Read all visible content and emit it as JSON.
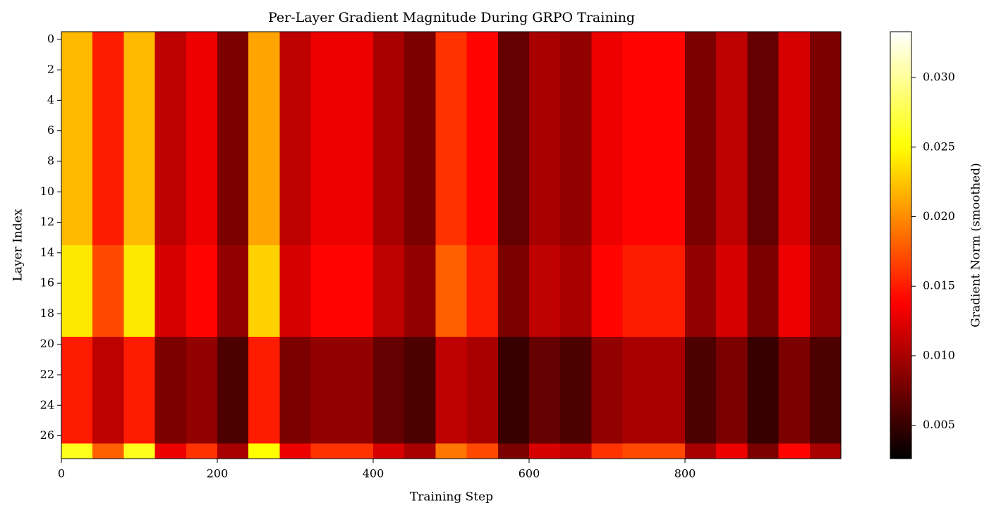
{
  "chart_data": {
    "type": "heatmap",
    "title": "Per-Layer Gradient Magnitude During GRPO Training",
    "x_label": "Training Step",
    "y_label": "Layer Index",
    "colorbar_label": "Gradient Norm (smoothed)",
    "colormap": "hot",
    "xbins": [
      0,
      40,
      80,
      120,
      160,
      200,
      240,
      280,
      320,
      360,
      400,
      440,
      480,
      520,
      560,
      600,
      640,
      680,
      720,
      760,
      800,
      840,
      880,
      920,
      960,
      1000
    ],
    "y": [
      0,
      1,
      2,
      3,
      4,
      5,
      6,
      7,
      8,
      9,
      10,
      11,
      12,
      13,
      14,
      15,
      16,
      17,
      18,
      19,
      20,
      21,
      22,
      23,
      24,
      25,
      26,
      27
    ],
    "z": [
      [
        0.022,
        0.015,
        0.022,
        0.011,
        0.013,
        0.008,
        0.021,
        0.011,
        0.013,
        0.013,
        0.01,
        0.008,
        0.016,
        0.014,
        0.007,
        0.01,
        0.009,
        0.013,
        0.014,
        0.014,
        0.008,
        0.011,
        0.007,
        0.012,
        0.008
      ],
      [
        0.022,
        0.015,
        0.022,
        0.011,
        0.013,
        0.008,
        0.021,
        0.011,
        0.013,
        0.013,
        0.01,
        0.008,
        0.016,
        0.014,
        0.007,
        0.01,
        0.009,
        0.013,
        0.014,
        0.014,
        0.008,
        0.011,
        0.007,
        0.012,
        0.008
      ],
      [
        0.022,
        0.015,
        0.022,
        0.011,
        0.013,
        0.008,
        0.021,
        0.011,
        0.013,
        0.013,
        0.01,
        0.008,
        0.016,
        0.014,
        0.007,
        0.01,
        0.009,
        0.013,
        0.014,
        0.014,
        0.008,
        0.011,
        0.007,
        0.012,
        0.008
      ],
      [
        0.022,
        0.015,
        0.022,
        0.011,
        0.013,
        0.008,
        0.021,
        0.011,
        0.013,
        0.013,
        0.01,
        0.008,
        0.016,
        0.014,
        0.007,
        0.01,
        0.009,
        0.013,
        0.014,
        0.014,
        0.008,
        0.011,
        0.007,
        0.012,
        0.008
      ],
      [
        0.022,
        0.015,
        0.022,
        0.011,
        0.013,
        0.008,
        0.021,
        0.011,
        0.013,
        0.013,
        0.01,
        0.008,
        0.016,
        0.014,
        0.007,
        0.01,
        0.009,
        0.013,
        0.014,
        0.014,
        0.008,
        0.011,
        0.007,
        0.012,
        0.008
      ],
      [
        0.022,
        0.015,
        0.022,
        0.011,
        0.013,
        0.008,
        0.021,
        0.011,
        0.013,
        0.013,
        0.01,
        0.008,
        0.016,
        0.014,
        0.007,
        0.01,
        0.009,
        0.013,
        0.014,
        0.014,
        0.008,
        0.011,
        0.007,
        0.012,
        0.008
      ],
      [
        0.022,
        0.015,
        0.022,
        0.011,
        0.013,
        0.008,
        0.021,
        0.011,
        0.013,
        0.013,
        0.01,
        0.008,
        0.016,
        0.014,
        0.007,
        0.01,
        0.009,
        0.013,
        0.014,
        0.014,
        0.008,
        0.011,
        0.007,
        0.012,
        0.008
      ],
      [
        0.022,
        0.015,
        0.022,
        0.011,
        0.013,
        0.008,
        0.021,
        0.011,
        0.013,
        0.013,
        0.01,
        0.008,
        0.016,
        0.014,
        0.007,
        0.01,
        0.009,
        0.013,
        0.014,
        0.014,
        0.008,
        0.011,
        0.007,
        0.012,
        0.008
      ],
      [
        0.022,
        0.015,
        0.022,
        0.011,
        0.013,
        0.008,
        0.021,
        0.011,
        0.013,
        0.013,
        0.01,
        0.008,
        0.016,
        0.014,
        0.007,
        0.01,
        0.009,
        0.013,
        0.014,
        0.014,
        0.008,
        0.011,
        0.007,
        0.012,
        0.008
      ],
      [
        0.022,
        0.015,
        0.022,
        0.011,
        0.013,
        0.008,
        0.021,
        0.011,
        0.013,
        0.013,
        0.01,
        0.008,
        0.016,
        0.014,
        0.007,
        0.01,
        0.009,
        0.013,
        0.014,
        0.014,
        0.008,
        0.011,
        0.007,
        0.012,
        0.008
      ],
      [
        0.022,
        0.015,
        0.022,
        0.011,
        0.013,
        0.008,
        0.021,
        0.011,
        0.013,
        0.013,
        0.01,
        0.008,
        0.016,
        0.014,
        0.007,
        0.01,
        0.009,
        0.013,
        0.014,
        0.014,
        0.008,
        0.011,
        0.007,
        0.012,
        0.008
      ],
      [
        0.022,
        0.015,
        0.022,
        0.011,
        0.013,
        0.008,
        0.021,
        0.011,
        0.013,
        0.013,
        0.01,
        0.008,
        0.016,
        0.014,
        0.007,
        0.01,
        0.009,
        0.013,
        0.014,
        0.014,
        0.008,
        0.011,
        0.007,
        0.012,
        0.008
      ],
      [
        0.022,
        0.015,
        0.022,
        0.011,
        0.013,
        0.008,
        0.021,
        0.011,
        0.013,
        0.013,
        0.01,
        0.008,
        0.016,
        0.014,
        0.007,
        0.01,
        0.009,
        0.013,
        0.014,
        0.014,
        0.008,
        0.011,
        0.007,
        0.012,
        0.008
      ],
      [
        0.022,
        0.015,
        0.022,
        0.011,
        0.013,
        0.008,
        0.021,
        0.011,
        0.013,
        0.013,
        0.01,
        0.008,
        0.016,
        0.014,
        0.007,
        0.01,
        0.009,
        0.013,
        0.014,
        0.014,
        0.008,
        0.011,
        0.007,
        0.012,
        0.008
      ],
      [
        0.024,
        0.017,
        0.024,
        0.012,
        0.014,
        0.009,
        0.023,
        0.012,
        0.014,
        0.014,
        0.011,
        0.009,
        0.018,
        0.015,
        0.008,
        0.011,
        0.01,
        0.014,
        0.015,
        0.015,
        0.009,
        0.012,
        0.008,
        0.013,
        0.009
      ],
      [
        0.024,
        0.017,
        0.024,
        0.012,
        0.014,
        0.009,
        0.023,
        0.012,
        0.014,
        0.014,
        0.011,
        0.009,
        0.018,
        0.015,
        0.008,
        0.011,
        0.01,
        0.014,
        0.015,
        0.015,
        0.009,
        0.012,
        0.008,
        0.013,
        0.009
      ],
      [
        0.024,
        0.017,
        0.024,
        0.012,
        0.014,
        0.009,
        0.023,
        0.012,
        0.014,
        0.014,
        0.011,
        0.009,
        0.018,
        0.015,
        0.008,
        0.011,
        0.01,
        0.014,
        0.015,
        0.015,
        0.009,
        0.012,
        0.008,
        0.013,
        0.009
      ],
      [
        0.024,
        0.017,
        0.024,
        0.012,
        0.014,
        0.009,
        0.023,
        0.012,
        0.014,
        0.014,
        0.011,
        0.009,
        0.018,
        0.015,
        0.008,
        0.011,
        0.01,
        0.014,
        0.015,
        0.015,
        0.009,
        0.012,
        0.008,
        0.013,
        0.009
      ],
      [
        0.024,
        0.017,
        0.024,
        0.012,
        0.014,
        0.009,
        0.023,
        0.012,
        0.014,
        0.014,
        0.011,
        0.009,
        0.018,
        0.015,
        0.008,
        0.011,
        0.01,
        0.014,
        0.015,
        0.015,
        0.009,
        0.012,
        0.008,
        0.013,
        0.009
      ],
      [
        0.024,
        0.017,
        0.024,
        0.012,
        0.014,
        0.009,
        0.023,
        0.012,
        0.014,
        0.014,
        0.011,
        0.009,
        0.018,
        0.015,
        0.008,
        0.011,
        0.01,
        0.014,
        0.015,
        0.015,
        0.009,
        0.012,
        0.008,
        0.013,
        0.009
      ],
      [
        0.015,
        0.011,
        0.015,
        0.008,
        0.009,
        0.006,
        0.015,
        0.008,
        0.009,
        0.009,
        0.007,
        0.006,
        0.011,
        0.01,
        0.005,
        0.007,
        0.006,
        0.009,
        0.01,
        0.01,
        0.006,
        0.008,
        0.005,
        0.008,
        0.006
      ],
      [
        0.015,
        0.011,
        0.015,
        0.008,
        0.009,
        0.006,
        0.015,
        0.008,
        0.009,
        0.009,
        0.007,
        0.006,
        0.011,
        0.01,
        0.005,
        0.007,
        0.006,
        0.009,
        0.01,
        0.01,
        0.006,
        0.008,
        0.005,
        0.008,
        0.006
      ],
      [
        0.015,
        0.011,
        0.015,
        0.008,
        0.009,
        0.006,
        0.015,
        0.008,
        0.009,
        0.009,
        0.007,
        0.006,
        0.011,
        0.01,
        0.005,
        0.007,
        0.006,
        0.009,
        0.01,
        0.01,
        0.006,
        0.008,
        0.005,
        0.008,
        0.006
      ],
      [
        0.015,
        0.011,
        0.015,
        0.008,
        0.009,
        0.006,
        0.015,
        0.008,
        0.009,
        0.009,
        0.007,
        0.006,
        0.011,
        0.01,
        0.005,
        0.007,
        0.006,
        0.009,
        0.01,
        0.01,
        0.006,
        0.008,
        0.005,
        0.008,
        0.006
      ],
      [
        0.015,
        0.011,
        0.015,
        0.008,
        0.009,
        0.006,
        0.015,
        0.008,
        0.009,
        0.009,
        0.007,
        0.006,
        0.011,
        0.01,
        0.005,
        0.007,
        0.006,
        0.009,
        0.01,
        0.01,
        0.006,
        0.008,
        0.005,
        0.008,
        0.006
      ],
      [
        0.015,
        0.011,
        0.015,
        0.008,
        0.009,
        0.006,
        0.015,
        0.008,
        0.009,
        0.009,
        0.007,
        0.006,
        0.011,
        0.01,
        0.005,
        0.007,
        0.006,
        0.009,
        0.01,
        0.01,
        0.006,
        0.008,
        0.005,
        0.008,
        0.006
      ],
      [
        0.015,
        0.011,
        0.015,
        0.008,
        0.009,
        0.006,
        0.015,
        0.008,
        0.009,
        0.009,
        0.007,
        0.006,
        0.011,
        0.01,
        0.005,
        0.007,
        0.006,
        0.009,
        0.01,
        0.01,
        0.006,
        0.008,
        0.005,
        0.008,
        0.006
      ],
      [
        0.026,
        0.018,
        0.026,
        0.013,
        0.016,
        0.01,
        0.025,
        0.013,
        0.016,
        0.016,
        0.012,
        0.01,
        0.019,
        0.017,
        0.008,
        0.012,
        0.011,
        0.016,
        0.017,
        0.017,
        0.01,
        0.013,
        0.008,
        0.014,
        0.01
      ]
    ],
    "xlim": [
      0,
      1000
    ],
    "xticks": [
      0,
      200,
      400,
      600,
      800
    ],
    "ylim": [
      27.5,
      -0.5
    ],
    "yticks": [
      0,
      2,
      4,
      6,
      8,
      10,
      12,
      14,
      16,
      18,
      20,
      22,
      24,
      26
    ],
    "clim": [
      0.0026,
      0.0333
    ],
    "cticks": [
      0.005,
      {
        "value": 0.01,
        "label": "0.010"
      },
      0.015,
      {
        "value": 0.02,
        "label": "0.020"
      },
      0.025,
      {
        "value": 0.03,
        "label": "0.030"
      }
    ]
  }
}
